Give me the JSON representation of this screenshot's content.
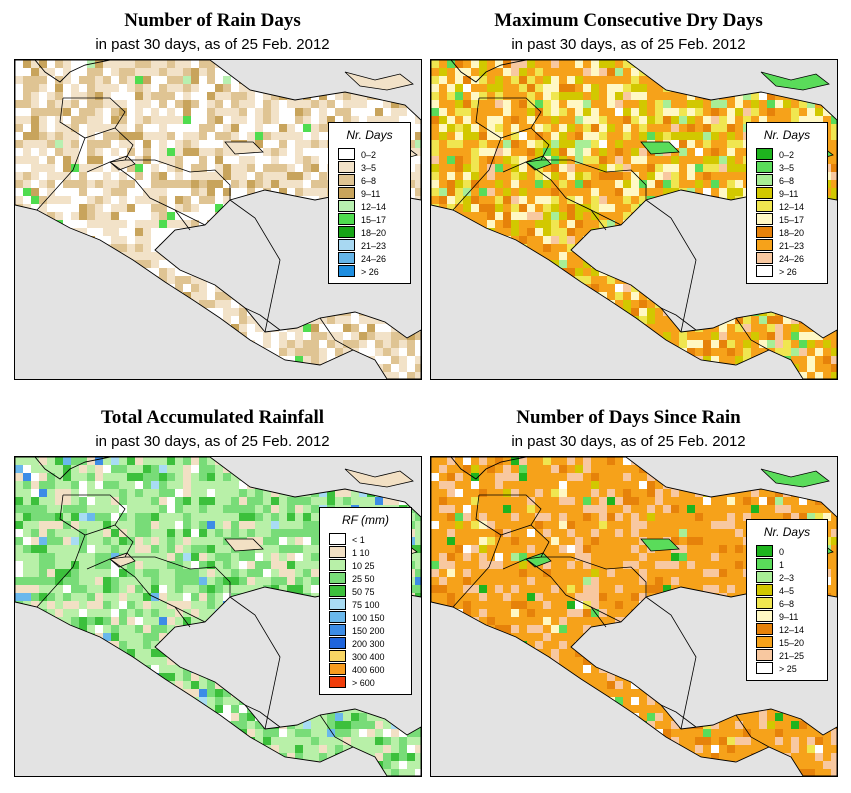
{
  "panels": [
    {
      "id": "rain_days",
      "title": "Number of Rain Days",
      "subtitle": "in past 30 days, as of  25 Feb. 2012",
      "legend_title": "Nr. Days",
      "legend": [
        {
          "label": "0–2",
          "color": "#ffffff"
        },
        {
          "label": "3–5",
          "color": "#f2e2c8"
        },
        {
          "label": "6–8",
          "color": "#dfc493"
        },
        {
          "label": "9–11",
          "color": "#c8a45c"
        },
        {
          "label": "12–14",
          "color": "#b8f0b0"
        },
        {
          "label": "15–17",
          "color": "#4fdc4f"
        },
        {
          "label": "18–20",
          "color": "#17a517"
        },
        {
          "label": "21–23",
          "color": "#a8d8f2"
        },
        {
          "label": "24–26",
          "color": "#64b4e8"
        },
        {
          "label": "> 26",
          "color": "#1e8ee0"
        }
      ],
      "fill_weights": [
        30,
        38,
        22,
        8,
        1,
        1
      ],
      "ocean": "#e3e3e3"
    },
    {
      "id": "max_dry",
      "title": "Maximum Consecutive Dry Days",
      "subtitle": "in past 30 days, as of  25 Feb. 2012",
      "legend_title": "Nr. Days",
      "legend": [
        {
          "label": "0–2",
          "color": "#1eb41e"
        },
        {
          "label": "3–5",
          "color": "#5adc5a"
        },
        {
          "label": "6–8",
          "color": "#a8ee96"
        },
        {
          "label": "9–11",
          "color": "#d2c800"
        },
        {
          "label": "12–14",
          "color": "#f0e650"
        },
        {
          "label": "15–17",
          "color": "#fff8c4"
        },
        {
          "label": "18–20",
          "color": "#e6820a"
        },
        {
          "label": "21–23",
          "color": "#f6a21a"
        },
        {
          "label": "24–26",
          "color": "#f8c8a0"
        },
        {
          "label": "> 26",
          "color": "#ffffff"
        }
      ],
      "fill_weights": [
        0,
        3,
        4,
        14,
        12,
        16,
        8,
        38,
        4,
        1
      ],
      "ocean": "#e3e3e3"
    },
    {
      "id": "total_rf",
      "title": "Total Accumulated Rainfall",
      "subtitle": "in past 30 days, as of  25 Feb. 2012",
      "legend_title": "RF (mm)",
      "legend": [
        {
          "label": "< 1",
          "color": "#ffffff"
        },
        {
          "label": "1  10",
          "color": "#f2e0c4"
        },
        {
          "label": "10  25",
          "color": "#b8f0a8"
        },
        {
          "label": "25  50",
          "color": "#78dc78"
        },
        {
          "label": "50  75",
          "color": "#3cc03c"
        },
        {
          "label": "75  100",
          "color": "#a8dcf4"
        },
        {
          "label": "100  150",
          "color": "#6ab8ec"
        },
        {
          "label": "150  200",
          "color": "#3c8ce6"
        },
        {
          "label": "200  300",
          "color": "#1e64dc"
        },
        {
          "label": "300  400",
          "color": "#f8d664"
        },
        {
          "label": "400  600",
          "color": "#f89c1e"
        },
        {
          "label": "> 600",
          "color": "#f03c0a"
        }
      ],
      "fill_weights": [
        6,
        14,
        42,
        26,
        8,
        2,
        1,
        1
      ],
      "ocean": "#e3e3e3"
    },
    {
      "id": "days_since",
      "title": "Number of Days Since Rain",
      "subtitle": "in past 30 days, as of  25 Feb. 2012",
      "legend_title": "Nr. Days",
      "legend": [
        {
          "label": "0",
          "color": "#1eb41e"
        },
        {
          "label": "1",
          "color": "#5adc5a"
        },
        {
          "label": "2–3",
          "color": "#a8ee96"
        },
        {
          "label": "4–5",
          "color": "#d2c800"
        },
        {
          "label": "6–8",
          "color": "#f0e650"
        },
        {
          "label": "9–11",
          "color": "#fff8c4"
        },
        {
          "label": "12–14",
          "color": "#e6820a"
        },
        {
          "label": "15–20",
          "color": "#f6a21a"
        },
        {
          "label": "21–25",
          "color": "#f8c8a0"
        },
        {
          "label": "> 25",
          "color": "#ffffff"
        }
      ],
      "fill_weights": [
        1,
        1,
        1,
        1,
        1,
        1,
        10,
        62,
        20,
        2
      ],
      "ocean": "#e3e3e3"
    }
  ]
}
